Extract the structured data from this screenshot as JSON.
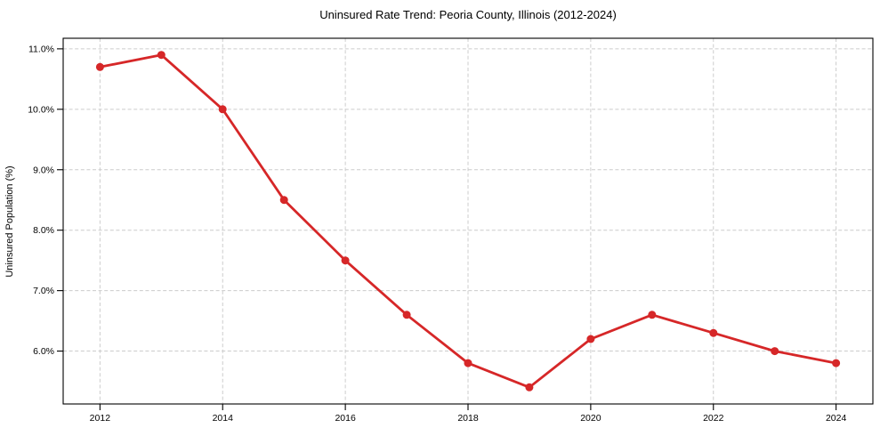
{
  "chart_data": {
    "type": "line",
    "title": "Uninsured Rate Trend: Peoria County, Illinois (2012-2024)",
    "xlabel": "",
    "ylabel": "Uninsured Population (%)",
    "x": [
      2012,
      2013,
      2014,
      2015,
      2016,
      2017,
      2018,
      2019,
      2020,
      2021,
      2022,
      2023,
      2024
    ],
    "values": [
      10.7,
      10.9,
      10.0,
      8.5,
      7.5,
      6.6,
      5.8,
      5.4,
      6.2,
      6.6,
      6.3,
      6.0,
      5.8
    ],
    "series_name": "Uninsured rate",
    "xlim": [
      2011.4,
      2024.6
    ],
    "ylim": [
      5.125,
      11.175
    ],
    "xticks": [
      2012,
      2014,
      2016,
      2018,
      2020,
      2022,
      2024
    ],
    "xtick_labels": [
      "2012",
      "2014",
      "2016",
      "2018",
      "2020",
      "2022",
      "2024"
    ],
    "yticks": [
      6.0,
      7.0,
      8.0,
      9.0,
      10.0,
      11.0
    ],
    "ytick_labels": [
      "6.0%",
      "7.0%",
      "8.0%",
      "9.0%",
      "10.0%",
      "11.0%"
    ],
    "grid": true,
    "grid_style": "dashed",
    "legend_position": "none",
    "line_color": "#d62728",
    "marker": "circle",
    "marker_radius": 4.5,
    "line_width": 2.8,
    "grid_color": "#cccccc",
    "frame_color": "#000000",
    "background_color": "#ffffff"
  }
}
